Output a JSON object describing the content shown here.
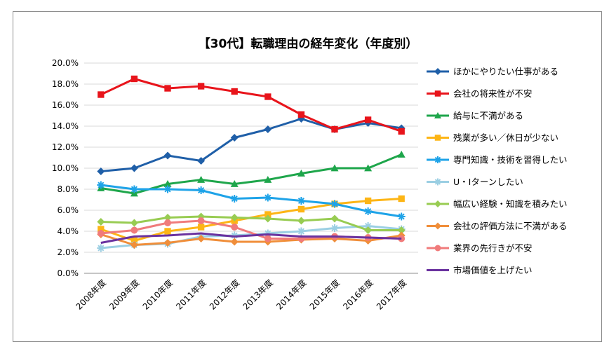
{
  "chart_data": {
    "type": "line",
    "title": "【30代】転職理由の経年変化（年度別）",
    "xlabel": "",
    "ylabel": "",
    "ylim": [
      0,
      20
    ],
    "y_ticks": [
      "0.0%",
      "2.0%",
      "4.0%",
      "6.0%",
      "8.0%",
      "10.0%",
      "12.0%",
      "14.0%",
      "16.0%",
      "18.0%",
      "20.0%"
    ],
    "categories": [
      "2008年度",
      "2009年度",
      "2010年度",
      "2011年度",
      "2012年度",
      "2013年度",
      "2014年度",
      "2015年度",
      "2016年度",
      "2017年度"
    ],
    "grid": true,
    "legend": "right",
    "series": [
      {
        "name": "ほかにやりたい仕事がある",
        "color": "#1F5FA8",
        "marker": "diamond",
        "values": [
          9.7,
          10.0,
          11.2,
          10.7,
          12.9,
          13.7,
          14.7,
          13.7,
          14.3,
          13.8
        ]
      },
      {
        "name": "会社の将来性が不安",
        "color": "#E8141B",
        "marker": "square",
        "values": [
          17.0,
          18.5,
          17.6,
          17.8,
          17.3,
          16.8,
          15.1,
          13.7,
          14.6,
          13.5
        ]
      },
      {
        "name": "給与に不満がある",
        "color": "#1EA64B",
        "marker": "triangle",
        "values": [
          8.1,
          7.6,
          8.5,
          8.9,
          8.5,
          8.9,
          9.5,
          10.0,
          10.0,
          11.3
        ]
      },
      {
        "name": "残業が多い／休日が少ない",
        "color": "#FDB515",
        "marker": "square",
        "values": [
          4.2,
          3.1,
          4.0,
          4.4,
          5.0,
          5.6,
          6.1,
          6.6,
          6.9,
          7.1
        ]
      },
      {
        "name": "専門知識・技術を習得したい",
        "color": "#1EA3E8",
        "marker": "star",
        "values": [
          8.4,
          8.0,
          8.0,
          7.9,
          7.1,
          7.2,
          6.9,
          6.6,
          5.9,
          5.4
        ]
      },
      {
        "name": "U・Iターンしたい",
        "color": "#9BCFE3",
        "marker": "star",
        "values": [
          2.4,
          2.7,
          2.8,
          3.5,
          3.6,
          3.8,
          4.0,
          4.3,
          4.5,
          4.2
        ]
      },
      {
        "name": "幅広い経験・知識を積みたい",
        "color": "#98CC52",
        "marker": "diamond",
        "values": [
          4.9,
          4.8,
          5.3,
          5.4,
          5.3,
          5.2,
          5.0,
          5.2,
          4.1,
          4.1
        ]
      },
      {
        "name": "会社の評価方法に不満がある",
        "color": "#F08E3A",
        "marker": "diamond",
        "values": [
          3.7,
          2.7,
          2.9,
          3.3,
          3.0,
          3.0,
          3.2,
          3.3,
          3.1,
          3.6
        ]
      },
      {
        "name": "業界の先行きが不安",
        "color": "#F07B7B",
        "marker": "circle",
        "values": [
          3.8,
          4.1,
          4.8,
          5.0,
          4.4,
          3.3,
          3.3,
          3.5,
          3.4,
          3.3
        ]
      },
      {
        "name": "市場価値を上げたい",
        "color": "#6A329F",
        "marker": "none",
        "values": [
          2.9,
          3.5,
          3.6,
          3.8,
          3.5,
          3.7,
          3.5,
          3.5,
          3.4,
          3.3
        ]
      }
    ]
  }
}
